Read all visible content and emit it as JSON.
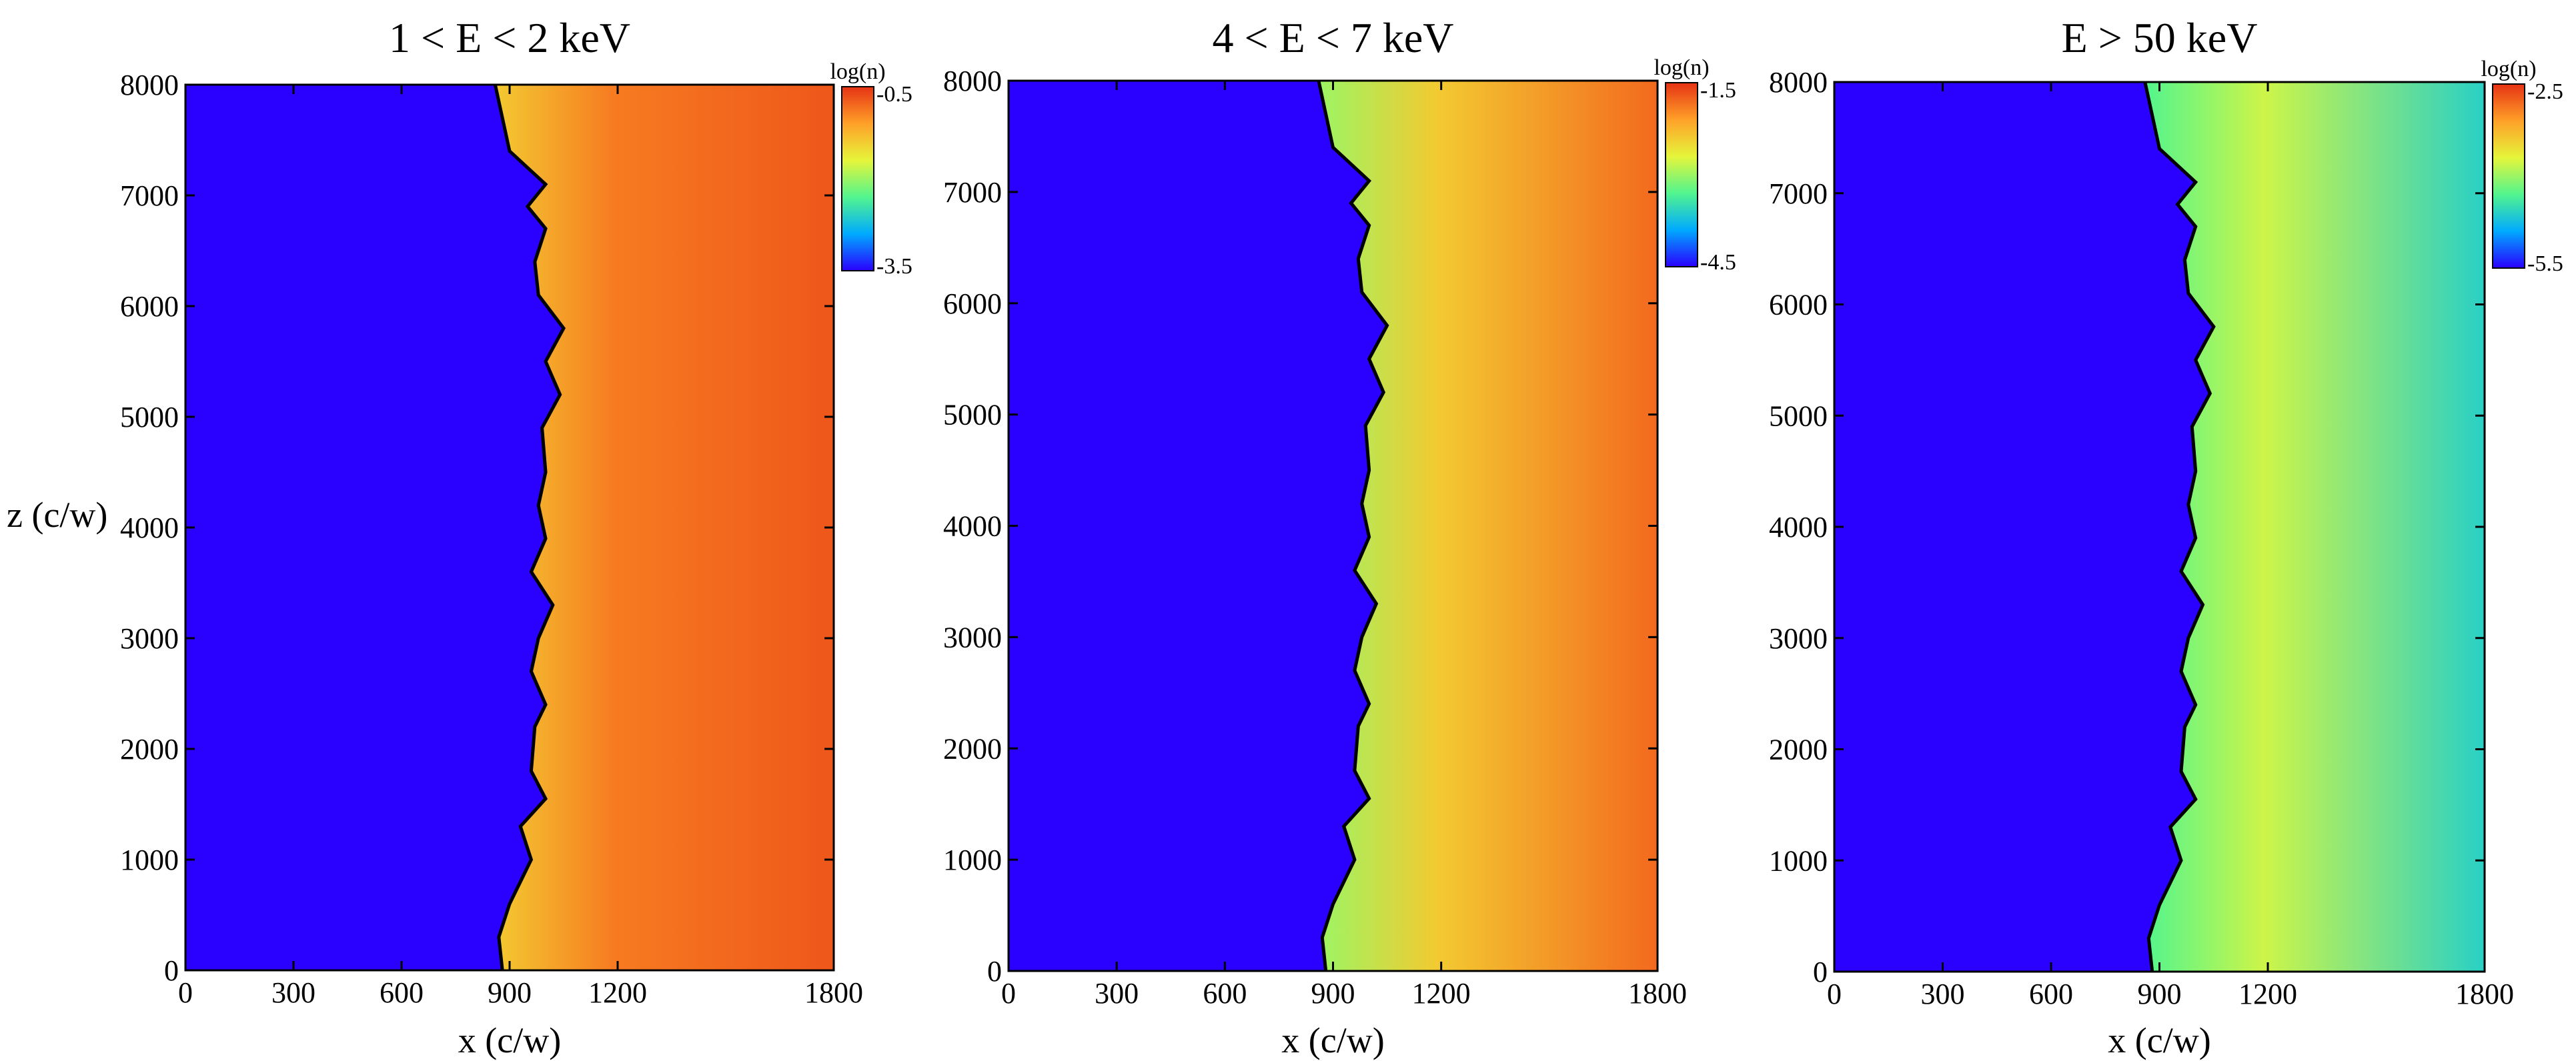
{
  "figure": {
    "ylabel": "z (c/w)",
    "xlabel": "x (c/w)"
  },
  "chart_data": [
    {
      "type": "heatmap",
      "title": "1 < E < 2 keV",
      "xlabel": "x (c/w)",
      "ylabel": "z (c/w)",
      "xlim": [
        0,
        1800
      ],
      "ylim": [
        0,
        8000
      ],
      "xticks": [
        0,
        300,
        600,
        900,
        1200,
        1800
      ],
      "yticks": [
        0,
        1000,
        2000,
        3000,
        4000,
        5000,
        6000,
        7000,
        8000
      ],
      "colorbar": {
        "label": "log(n)",
        "max": -0.5,
        "min": -3.5,
        "colormap": "jet"
      },
      "levels": {
        "background": -3.5,
        "edge": -1.4,
        "interior": -0.9,
        "far": -0.7
      }
    },
    {
      "type": "heatmap",
      "title": "4 < E < 7 keV",
      "xlabel": "x (c/w)",
      "ylabel": "z (c/w)",
      "xlim": [
        0,
        1800
      ],
      "ylim": [
        0,
        8000
      ],
      "xticks": [
        0,
        300,
        600,
        900,
        1200,
        1800
      ],
      "yticks": [
        0,
        1000,
        2000,
        3000,
        4000,
        5000,
        6000,
        7000,
        8000
      ],
      "colorbar": {
        "label": "log(n)",
        "max": -1.5,
        "min": -4.5,
        "colormap": "jet"
      },
      "levels": {
        "background": -4.5,
        "edge": -3.0,
        "interior": -2.4,
        "far": -1.8
      }
    },
    {
      "type": "heatmap",
      "title": "E > 50 keV",
      "xlabel": "x (c/w)",
      "ylabel": "z (c/w)",
      "xlim": [
        0,
        1800
      ],
      "ylim": [
        0,
        8000
      ],
      "xticks": [
        0,
        300,
        600,
        900,
        1200,
        1800
      ],
      "yticks": [
        0,
        1000,
        2000,
        3000,
        4000,
        5000,
        6000,
        7000,
        8000
      ],
      "colorbar": {
        "label": "log(n)",
        "max": -2.5,
        "min": -5.5,
        "colormap": "jet"
      },
      "levels": {
        "background": -5.5,
        "edge": -4.3,
        "interior": -3.8,
        "far": -4.6
      }
    }
  ],
  "boundary_curve": {
    "color": "#000000",
    "points": [
      [
        880,
        0
      ],
      [
        870,
        300
      ],
      [
        900,
        600
      ],
      [
        960,
        1000
      ],
      [
        930,
        1300
      ],
      [
        1000,
        1550
      ],
      [
        960,
        1800
      ],
      [
        970,
        2200
      ],
      [
        1000,
        2400
      ],
      [
        960,
        2700
      ],
      [
        980,
        3000
      ],
      [
        1020,
        3300
      ],
      [
        960,
        3600
      ],
      [
        1000,
        3900
      ],
      [
        980,
        4200
      ],
      [
        1000,
        4500
      ],
      [
        990,
        4900
      ],
      [
        1040,
        5200
      ],
      [
        1000,
        5500
      ],
      [
        1050,
        5800
      ],
      [
        980,
        6100
      ],
      [
        970,
        6400
      ],
      [
        1000,
        6700
      ],
      [
        950,
        6900
      ],
      [
        1000,
        7100
      ],
      [
        900,
        7400
      ],
      [
        880,
        7700
      ],
      [
        860,
        8000
      ]
    ]
  },
  "colormap_stops": [
    "#2a00ff",
    "#00aaff",
    "#52f58e",
    "#e6f53a",
    "#ffa028",
    "#e63214"
  ]
}
